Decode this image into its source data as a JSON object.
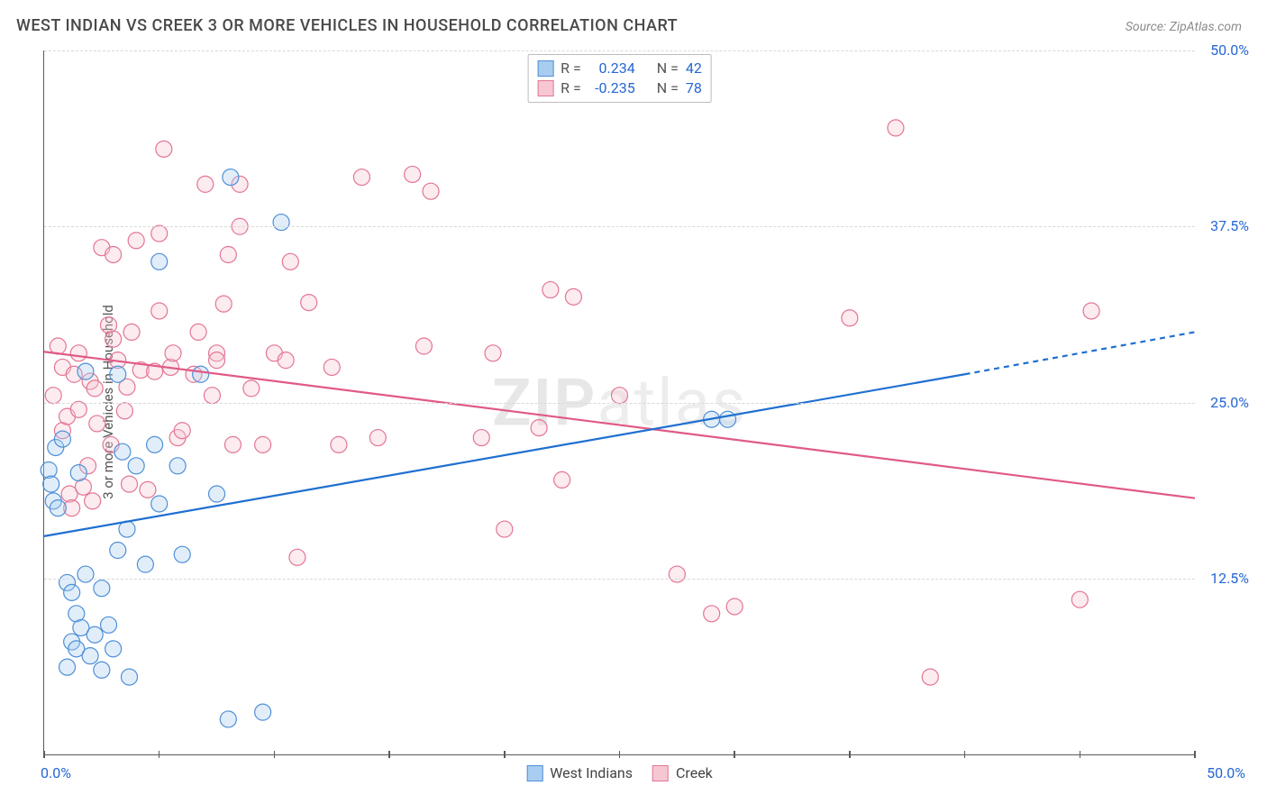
{
  "title": "WEST INDIAN VS CREEK 3 OR MORE VEHICLES IN HOUSEHOLD CORRELATION CHART",
  "source": "Source: ZipAtlas.com",
  "ylabel": "3 or more Vehicles in Household",
  "watermark_1": "ZIP",
  "watermark_2": "atlas",
  "chart": {
    "type": "scatter-with-regression",
    "xlim": [
      0,
      50
    ],
    "ylim": [
      0,
      50
    ],
    "x_ticks": [
      0,
      5,
      10,
      15,
      20,
      25,
      30,
      35,
      40,
      45,
      50
    ],
    "y_gridlines": [
      12.5,
      25.0,
      37.5,
      50.0
    ],
    "y_labels": [
      "12.5%",
      "25.0%",
      "37.5%",
      "50.0%"
    ],
    "x_label_min": "0.0%",
    "x_label_max": "50.0%",
    "background_color": "#ffffff",
    "grid_color": "#d9d9d9",
    "axis_color": "#5a5a5a",
    "tick_label_color": "#2567d4",
    "marker_radius": 9,
    "marker_stroke_width": 1.2,
    "line_width": 2.2,
    "marker_fill_opacity": 0.35,
    "series": [
      {
        "name": "West Indians",
        "color_fill": "#a9cdf0",
        "color_stroke": "#4f8fd6",
        "line_color": "#1f6fd0",
        "R": "0.234",
        "N": "42",
        "regression": {
          "x1": 0,
          "y1": 15.5,
          "x2": 40,
          "y2": 27.0,
          "dash_x2": 50,
          "dash_y2": 30.0
        },
        "points": [
          [
            0.2,
            20.2
          ],
          [
            0.4,
            18.0
          ],
          [
            0.5,
            21.8
          ],
          [
            0.6,
            17.5
          ],
          [
            0.8,
            22.4
          ],
          [
            0.3,
            19.2
          ],
          [
            1.0,
            6.2
          ],
          [
            1.2,
            8.0
          ],
          [
            1.4,
            7.5
          ],
          [
            1.0,
            12.2
          ],
          [
            1.2,
            11.5
          ],
          [
            1.4,
            10.0
          ],
          [
            1.6,
            9.0
          ],
          [
            1.8,
            12.8
          ],
          [
            1.5,
            20.0
          ],
          [
            1.8,
            27.2
          ],
          [
            2.0,
            7.0
          ],
          [
            2.2,
            8.5
          ],
          [
            2.5,
            11.8
          ],
          [
            2.5,
            6.0
          ],
          [
            2.8,
            9.2
          ],
          [
            3.0,
            7.5
          ],
          [
            3.2,
            14.5
          ],
          [
            3.4,
            21.5
          ],
          [
            3.2,
            27.0
          ],
          [
            3.6,
            16.0
          ],
          [
            3.7,
            5.5
          ],
          [
            4.0,
            20.5
          ],
          [
            4.4,
            13.5
          ],
          [
            4.8,
            22.0
          ],
          [
            5.0,
            17.8
          ],
          [
            5.0,
            35.0
          ],
          [
            5.8,
            20.5
          ],
          [
            6.0,
            14.2
          ],
          [
            6.8,
            27.0
          ],
          [
            7.5,
            18.5
          ],
          [
            8.0,
            2.5
          ],
          [
            8.1,
            41.0
          ],
          [
            9.5,
            3.0
          ],
          [
            10.3,
            37.8
          ],
          [
            29.0,
            23.8
          ],
          [
            29.7,
            23.8
          ]
        ]
      },
      {
        "name": "Creek",
        "color_fill": "#f6c7d2",
        "color_stroke": "#e37694",
        "line_color": "#e05a85",
        "R": "-0.235",
        "N": "78",
        "regression": {
          "x1": 0,
          "y1": 28.6,
          "x2": 50,
          "y2": 18.2
        },
        "points": [
          [
            0.4,
            25.5
          ],
          [
            0.6,
            29.0
          ],
          [
            0.8,
            23.0
          ],
          [
            0.8,
            27.5
          ],
          [
            1.0,
            24.0
          ],
          [
            1.1,
            18.5
          ],
          [
            1.2,
            17.5
          ],
          [
            1.3,
            27.0
          ],
          [
            1.5,
            24.5
          ],
          [
            1.5,
            28.5
          ],
          [
            1.7,
            19.0
          ],
          [
            1.9,
            20.5
          ],
          [
            2.0,
            26.5
          ],
          [
            2.1,
            18.0
          ],
          [
            2.2,
            26.0
          ],
          [
            2.3,
            23.5
          ],
          [
            2.5,
            36.0
          ],
          [
            2.8,
            30.5
          ],
          [
            2.9,
            22.0
          ],
          [
            3.0,
            29.5
          ],
          [
            3.0,
            35.5
          ],
          [
            3.2,
            28.0
          ],
          [
            3.5,
            24.4
          ],
          [
            3.6,
            26.1
          ],
          [
            3.7,
            19.2
          ],
          [
            3.8,
            30.0
          ],
          [
            4.0,
            36.5
          ],
          [
            4.2,
            27.3
          ],
          [
            4.5,
            18.8
          ],
          [
            4.8,
            27.2
          ],
          [
            5.0,
            31.5
          ],
          [
            5.0,
            37.0
          ],
          [
            5.2,
            43.0
          ],
          [
            5.5,
            27.5
          ],
          [
            5.6,
            28.5
          ],
          [
            5.8,
            22.5
          ],
          [
            6.0,
            23.0
          ],
          [
            6.5,
            27.0
          ],
          [
            6.7,
            30.0
          ],
          [
            7.0,
            40.5
          ],
          [
            7.3,
            25.5
          ],
          [
            7.5,
            28.5
          ],
          [
            7.5,
            28.0
          ],
          [
            7.8,
            32.0
          ],
          [
            8.0,
            35.5
          ],
          [
            8.2,
            22.0
          ],
          [
            8.5,
            40.5
          ],
          [
            8.5,
            37.5
          ],
          [
            9.0,
            26.0
          ],
          [
            9.5,
            22.0
          ],
          [
            10.0,
            28.5
          ],
          [
            10.5,
            28.0
          ],
          [
            10.7,
            35.0
          ],
          [
            11.0,
            14.0
          ],
          [
            11.5,
            32.1
          ],
          [
            12.5,
            27.5
          ],
          [
            12.8,
            22.0
          ],
          [
            13.8,
            41.0
          ],
          [
            14.5,
            22.5
          ],
          [
            16.0,
            41.2
          ],
          [
            16.5,
            29.0
          ],
          [
            16.8,
            40.0
          ],
          [
            19.0,
            22.5
          ],
          [
            19.5,
            28.5
          ],
          [
            20.0,
            16.0
          ],
          [
            21.5,
            23.2
          ],
          [
            22.0,
            33.0
          ],
          [
            22.5,
            19.5
          ],
          [
            23.0,
            32.5
          ],
          [
            25.0,
            25.5
          ],
          [
            27.5,
            12.8
          ],
          [
            29.0,
            10.0
          ],
          [
            30.0,
            10.5
          ],
          [
            35.0,
            31.0
          ],
          [
            37.0,
            44.5
          ],
          [
            38.5,
            5.5
          ],
          [
            45.0,
            11.0
          ],
          [
            45.5,
            31.5
          ]
        ]
      }
    ]
  },
  "legend_labels": {
    "r": "R =",
    "n": "N ="
  }
}
